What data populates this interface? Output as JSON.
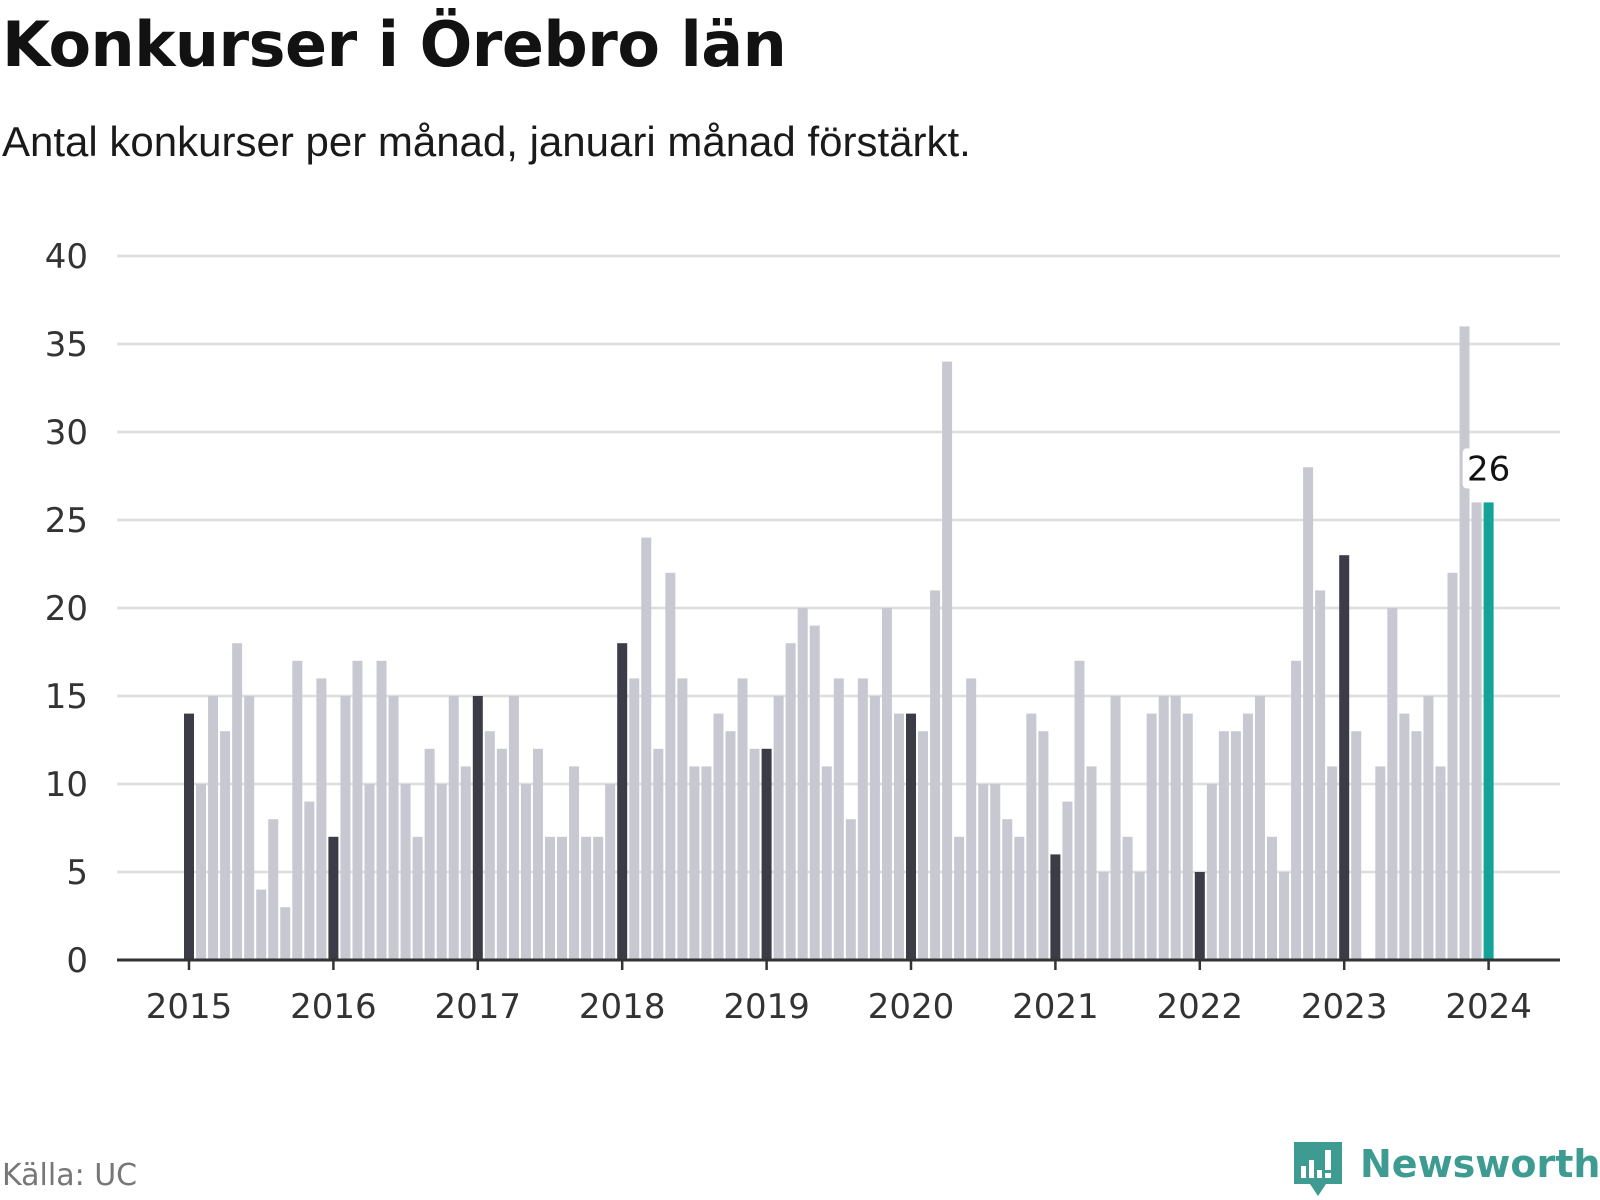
{
  "header": {
    "title": "Konkurser i Örebro län",
    "subtitle": "Antal konkurser per månad, januari månad förstärkt."
  },
  "footer": {
    "source": "Källa: UC",
    "brand": "Newsworthy"
  },
  "colors": {
    "bar": "#c8c8d2",
    "january": "#3c3c48",
    "highlight": "#14a398",
    "grid": "#dddddd",
    "axis": "#333333",
    "brand": "#3d9b92"
  },
  "chart_data": {
    "type": "bar",
    "start": "2015-01",
    "x_tick_labels": [
      "2015",
      "2016",
      "2017",
      "2018",
      "2019",
      "2020",
      "2021",
      "2022",
      "2023",
      "2024"
    ],
    "ylim": [
      0,
      40
    ],
    "y_ticks": [
      0,
      5,
      10,
      15,
      20,
      25,
      30,
      35,
      40
    ],
    "grid": true,
    "values": [
      14,
      10,
      15,
      13,
      18,
      15,
      4,
      8,
      3,
      17,
      9,
      16,
      7,
      15,
      17,
      10,
      17,
      15,
      10,
      7,
      12,
      10,
      15,
      11,
      15,
      13,
      12,
      15,
      10,
      12,
      7,
      7,
      11,
      7,
      7,
      10,
      18,
      16,
      24,
      12,
      22,
      16,
      11,
      11,
      14,
      13,
      16,
      12,
      12,
      15,
      18,
      20,
      19,
      11,
      16,
      8,
      16,
      15,
      20,
      14,
      14,
      13,
      21,
      34,
      7,
      16,
      10,
      10,
      8,
      7,
      14,
      13,
      6,
      9,
      17,
      11,
      5,
      15,
      7,
      5,
      14,
      15,
      15,
      14,
      5,
      10,
      13,
      13,
      14,
      15,
      7,
      5,
      17,
      28,
      21,
      11,
      23,
      13,
      0,
      11,
      20,
      14,
      13,
      15,
      11,
      22,
      36,
      26,
      26
    ],
    "highlight_label": "26"
  }
}
